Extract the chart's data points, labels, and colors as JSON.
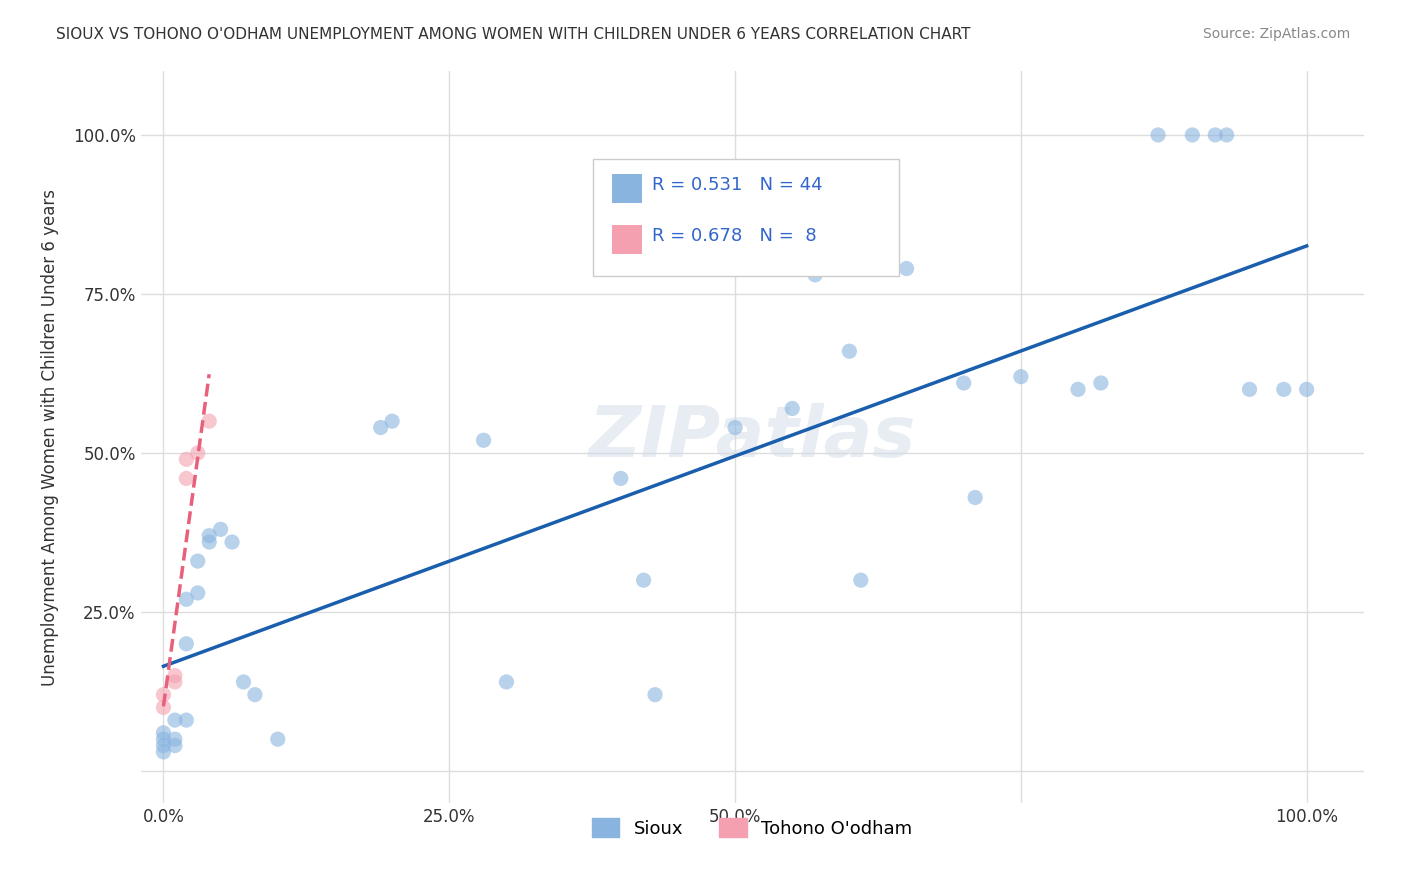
{
  "title": "SIOUX VS TOHONO O'ODHAM UNEMPLOYMENT AMONG WOMEN WITH CHILDREN UNDER 6 YEARS CORRELATION CHART",
  "source": "Source: ZipAtlas.com",
  "xlabel": "",
  "ylabel": "Unemployment Among Women with Children Under 6 years",
  "background_color": "#ffffff",
  "sioux_color": "#89b4e0",
  "tohono_color": "#f4a0b0",
  "sioux_R": 0.531,
  "sioux_N": 44,
  "tohono_R": 0.678,
  "tohono_N": 8,
  "regression_sioux_color": "#1a5fad",
  "regression_tohono_color": "#e8607a",
  "sioux_points": [
    [
      0.0,
      0.05
    ],
    [
      0.0,
      0.04
    ],
    [
      0.0,
      0.06
    ],
    [
      0.0,
      0.03
    ],
    [
      0.01,
      0.05
    ],
    [
      0.01,
      0.04
    ],
    [
      0.01,
      0.08
    ],
    [
      0.02,
      0.08
    ],
    [
      0.02,
      0.27
    ],
    [
      0.02,
      0.2
    ],
    [
      0.03,
      0.28
    ],
    [
      0.03,
      0.33
    ],
    [
      0.04,
      0.37
    ],
    [
      0.04,
      0.36
    ],
    [
      0.05,
      0.38
    ],
    [
      0.06,
      0.36
    ],
    [
      0.07,
      0.14
    ],
    [
      0.08,
      0.12
    ],
    [
      0.1,
      0.05
    ],
    [
      0.19,
      0.54
    ],
    [
      0.2,
      0.55
    ],
    [
      0.28,
      0.52
    ],
    [
      0.3,
      0.14
    ],
    [
      0.4,
      0.46
    ],
    [
      0.42,
      0.3
    ],
    [
      0.43,
      0.12
    ],
    [
      0.5,
      0.54
    ],
    [
      0.55,
      0.57
    ],
    [
      0.57,
      0.78
    ],
    [
      0.6,
      0.66
    ],
    [
      0.61,
      0.3
    ],
    [
      0.65,
      0.79
    ],
    [
      0.7,
      0.61
    ],
    [
      0.71,
      0.43
    ],
    [
      0.75,
      0.62
    ],
    [
      0.8,
      0.6
    ],
    [
      0.82,
      0.61
    ],
    [
      0.87,
      1.0
    ],
    [
      0.9,
      1.0
    ],
    [
      0.92,
      1.0
    ],
    [
      0.93,
      1.0
    ],
    [
      0.95,
      0.6
    ],
    [
      0.98,
      0.6
    ],
    [
      1.0,
      0.6
    ]
  ],
  "tohono_points": [
    [
      0.0,
      0.1
    ],
    [
      0.0,
      0.12
    ],
    [
      0.01,
      0.15
    ],
    [
      0.01,
      0.14
    ],
    [
      0.02,
      0.46
    ],
    [
      0.02,
      0.49
    ],
    [
      0.03,
      0.5
    ],
    [
      0.04,
      0.55
    ]
  ],
  "xlim": [
    -0.02,
    1.05
  ],
  "ylim": [
    -0.05,
    1.1
  ],
  "xticks": [
    0.0,
    0.25,
    0.5,
    0.75,
    1.0
  ],
  "xticklabels": [
    "0.0%",
    "25.0%",
    "50.0%",
    "",
    "100.0%"
  ],
  "yticks": [
    0.0,
    0.25,
    0.5,
    0.75,
    1.0
  ],
  "yticklabels": [
    "",
    "25.0%",
    "50.0%",
    "75.0%",
    "100.0%"
  ],
  "grid_color": "#dddddd",
  "watermark": "ZIPatlas",
  "legend_labels": [
    "Sioux",
    "Tohono O'odham"
  ],
  "marker_size": 120,
  "marker_alpha": 0.6,
  "line_width": 2.5
}
